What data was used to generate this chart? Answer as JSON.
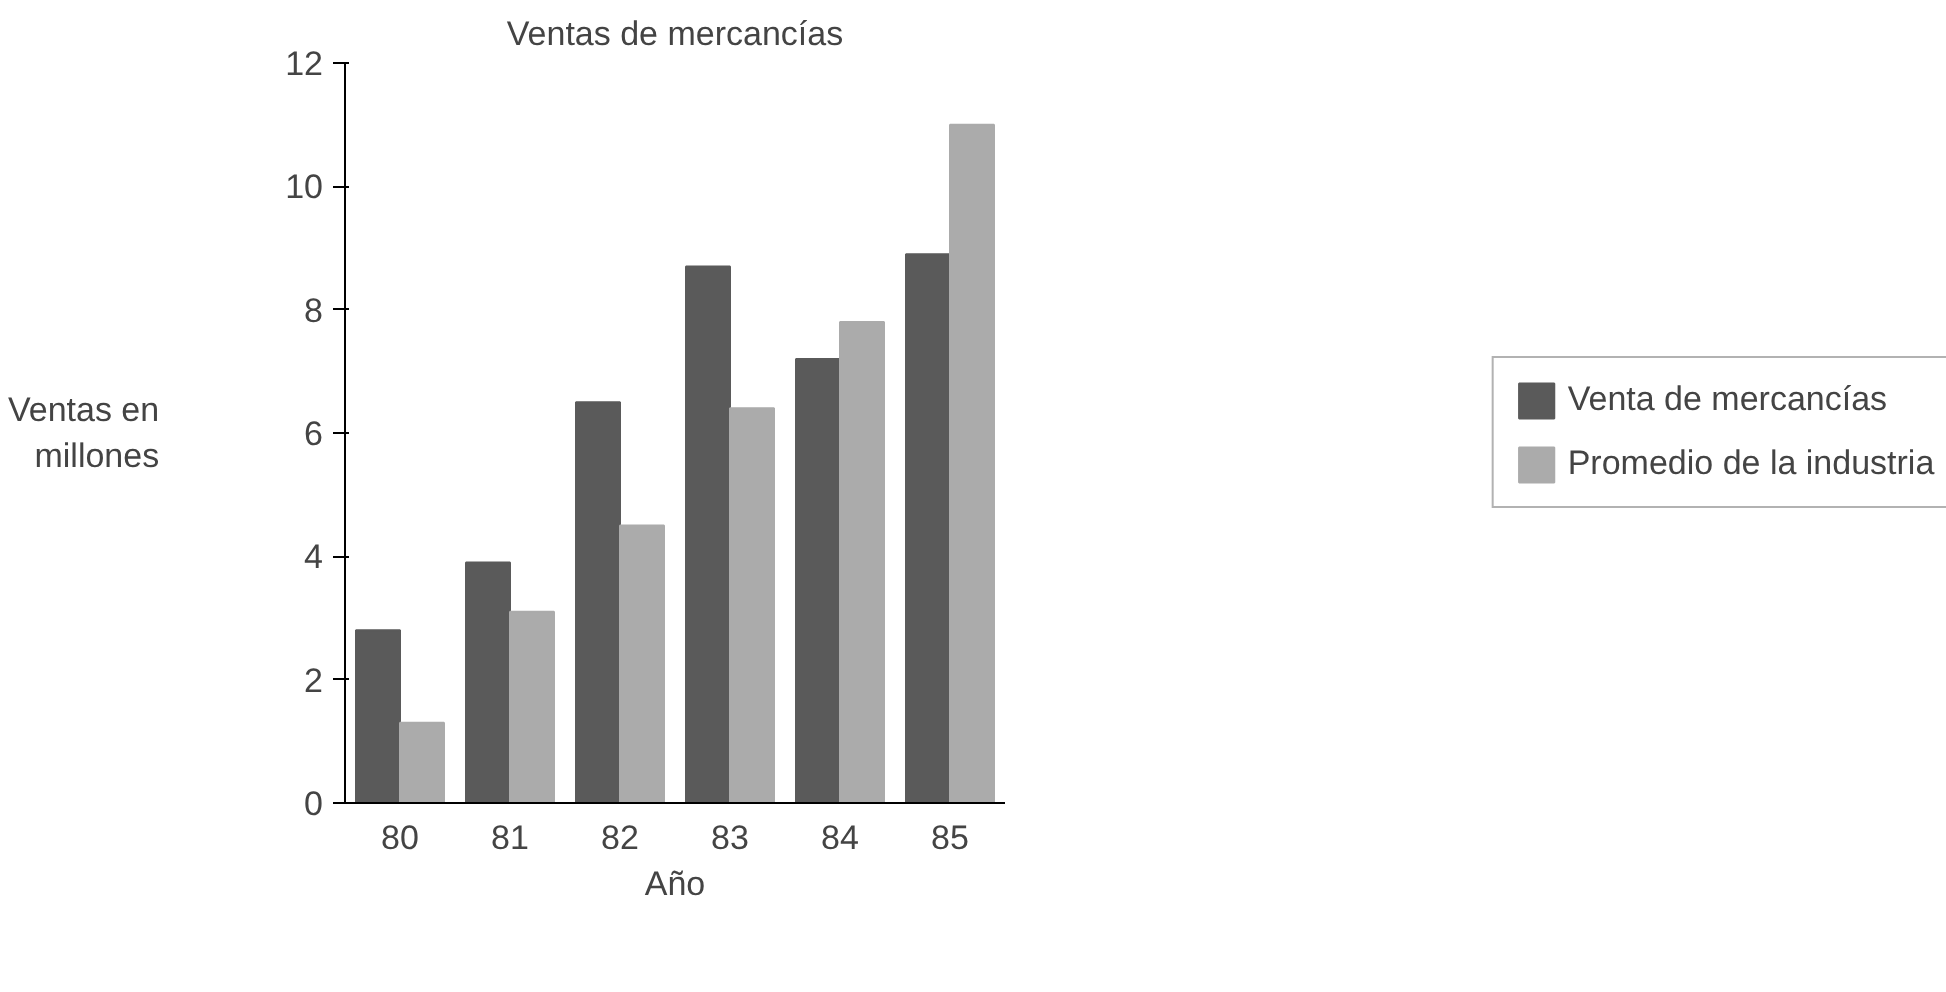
{
  "chart_data": {
    "type": "bar",
    "title": "Ventas de mercancías",
    "xlabel": "Año",
    "ylabel": "Ventas en\nmillones",
    "categories": [
      "80",
      "81",
      "82",
      "83",
      "84",
      "85"
    ],
    "series": [
      {
        "name": "Venta de mercancías",
        "color": "#5a5a5a",
        "values": [
          2.8,
          3.9,
          6.5,
          8.7,
          7.2,
          8.9
        ]
      },
      {
        "name": "Promedio de la industria",
        "color": "#ababab",
        "values": [
          1.3,
          3.1,
          4.5,
          6.4,
          7.8,
          11.0
        ]
      }
    ],
    "ylim": [
      0,
      12
    ],
    "yticks": [
      0,
      2,
      4,
      6,
      8,
      10,
      12
    ],
    "grid": false,
    "legend": "right"
  }
}
